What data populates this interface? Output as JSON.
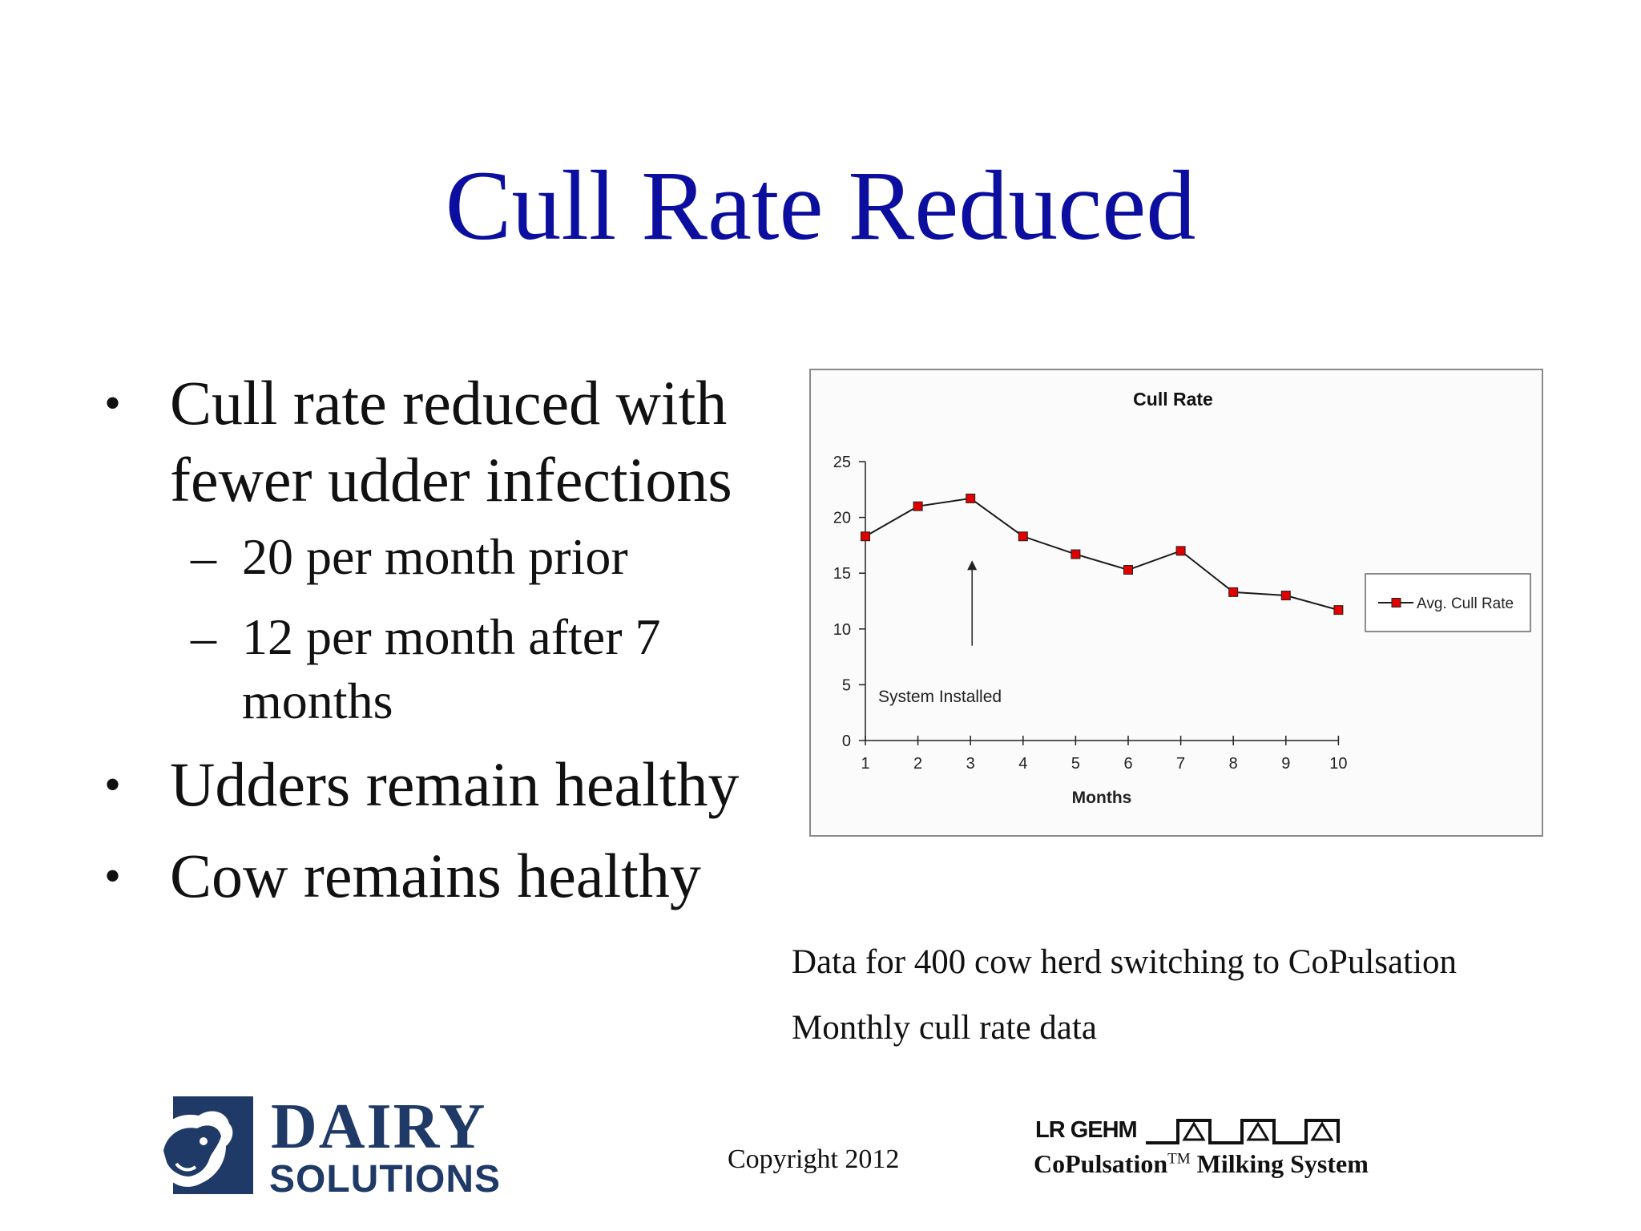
{
  "slide": {
    "title": "Cull Rate Reduced",
    "bullets": [
      {
        "text": "Cull rate reduced with fewer udder infections",
        "line1": "Cull rate reduced with",
        "line2": "fewer udder infections"
      },
      {
        "text": "Udders remain healthy"
      },
      {
        "text": "Cow remains healthy"
      }
    ],
    "sub_bullets": [
      {
        "text": "20 per month prior"
      },
      {
        "line1": "12 per month after 7",
        "line2": "months"
      }
    ],
    "bullet_glyph": "•",
    "dash_glyph": "–",
    "notes": [
      "Data for 400 cow herd switching to CoPulsation",
      "Monthly cull rate data"
    ],
    "copyright": "Copyright 2012"
  },
  "logos": {
    "dairy": {
      "word1": "DAIRY",
      "word2": "SOLUTIONS",
      "icon": "cow-head-icon"
    },
    "gehm": {
      "word1": "LR GEHM",
      "word2": "CoPulsation",
      "tm": "TM",
      "word3": " Milking System",
      "icon": "pulsation-wave-icon"
    }
  },
  "colors": {
    "title": "#0b0e9e",
    "series": "#e00000",
    "line": "#1a1a1a",
    "logo_navy": "#1f3a66"
  },
  "chart_data": {
    "type": "line",
    "title": "Cull Rate",
    "xlabel": "Months",
    "ylabel": "",
    "x": [
      1,
      2,
      3,
      4,
      5,
      6,
      7,
      8,
      9,
      10
    ],
    "series": [
      {
        "name": "Avg. Cull Rate",
        "values": [
          18.3,
          21.0,
          21.7,
          18.3,
          16.7,
          15.3,
          17.0,
          13.3,
          13.0,
          11.7
        ]
      }
    ],
    "ylim": [
      0,
      25
    ],
    "yticks": [
      0,
      5,
      10,
      15,
      20,
      25
    ],
    "grid": false,
    "legend": "right",
    "annotation": {
      "text": "System Installed",
      "x": 3,
      "arrow_from": 8.5,
      "arrow_to": 16
    }
  }
}
